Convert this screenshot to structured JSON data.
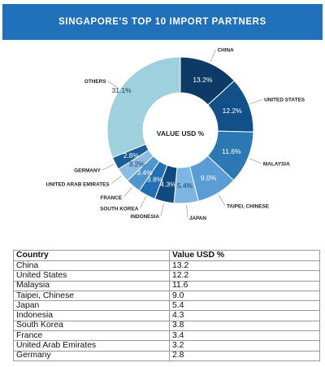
{
  "chart_data": {
    "type": "pie",
    "title": "SINGAPORE'S TOP 10 IMPORT PARTNERS",
    "center_label": "VALUE USD %",
    "categories": [
      "CHINA",
      "UNITED STATES",
      "MALAYSIA",
      "TAIPEI, CHINESE",
      "JAPAN",
      "INDONESIA",
      "SOUTH KOREA",
      "FRANCE",
      "UNITED ARAB EMIRATES",
      "GERMANY",
      "OTHERS"
    ],
    "values": [
      13.2,
      12.2,
      11.6,
      9.0,
      5.4,
      4.3,
      3.8,
      3.4,
      3.2,
      2.8,
      31.1
    ],
    "value_labels": [
      "13.2%",
      "12.2%",
      "11.6%",
      "9.0%",
      "5.4%",
      "4.3%",
      "3.8%",
      "3.4%",
      "3.2%",
      "2.8%",
      "31.1%"
    ],
    "colors": [
      "#0d3a66",
      "#13508a",
      "#2b78b3",
      "#5a9dd5",
      "#7db6e2",
      "#0f4a7e",
      "#2070b4",
      "#4f95cf",
      "#8cbce0",
      "#1c5c98",
      "#9fd0dd"
    ],
    "donut": true
  },
  "table": {
    "headers": [
      "Country",
      "Value USD %"
    ],
    "rows": [
      [
        "China",
        "13.2"
      ],
      [
        "United States",
        "12.2"
      ],
      [
        "Malaysia",
        "11.6"
      ],
      [
        "Taipei, Chinese",
        "9.0"
      ],
      [
        "Japan",
        "5.4"
      ],
      [
        "Indonesia",
        "4.3"
      ],
      [
        "South Korea",
        "3.8"
      ],
      [
        "France",
        "3.4"
      ],
      [
        "United Arab Emirates",
        "3.2"
      ],
      [
        "Germany",
        "2.8"
      ]
    ]
  }
}
